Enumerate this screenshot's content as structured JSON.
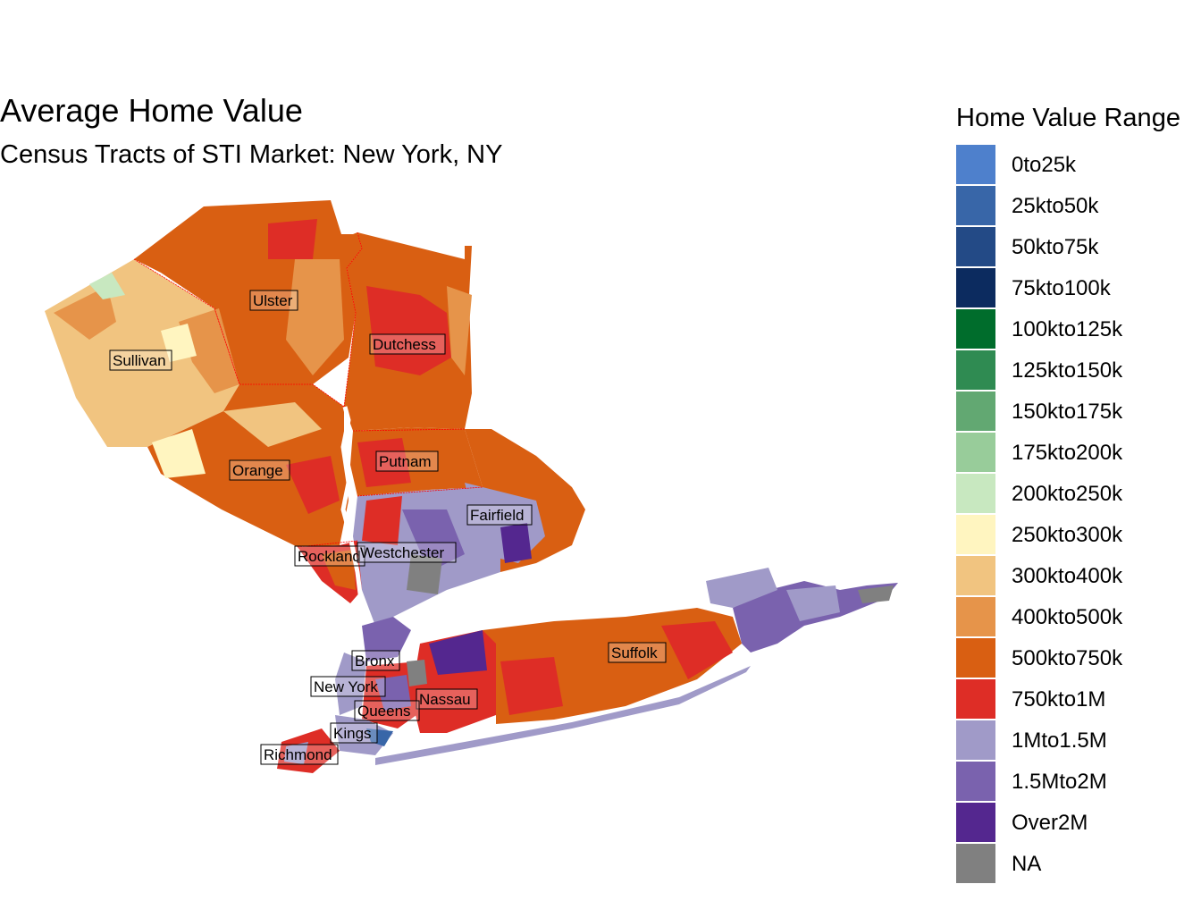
{
  "title": "Average Home Value",
  "subtitle": "Census Tracts of STI Market: New York, NY",
  "legend": {
    "title": "Home Value Range",
    "items": [
      {
        "label": "0to25k",
        "color": "#4e80cc"
      },
      {
        "label": "25kto50k",
        "color": "#3866a8"
      },
      {
        "label": "50kto75k",
        "color": "#234a86"
      },
      {
        "label": "75kto100k",
        "color": "#0c2b5f"
      },
      {
        "label": "100kto125k",
        "color": "#006d2c"
      },
      {
        "label": "125kto150k",
        "color": "#2f8b52"
      },
      {
        "label": "150kto175k",
        "color": "#62a872"
      },
      {
        "label": "175kto200k",
        "color": "#98cc9a"
      },
      {
        "label": "200kto250k",
        "color": "#c8e8c0"
      },
      {
        "label": "250kto300k",
        "color": "#fff5c0"
      },
      {
        "label": "300kto400k",
        "color": "#f1c480"
      },
      {
        "label": "400kto500k",
        "color": "#e6944a"
      },
      {
        "label": "500kto750k",
        "color": "#d95f12"
      },
      {
        "label": "750kto1M",
        "color": "#de2d26"
      },
      {
        "label": "1Mto1.5M",
        "color": "#a09ac8"
      },
      {
        "label": "1.5Mto2M",
        "color": "#7a62ae"
      },
      {
        "label": "Over2M",
        "color": "#54278f"
      },
      {
        "label": "NA",
        "color": "#808080"
      }
    ]
  },
  "counties": [
    {
      "name": "Ulster"
    },
    {
      "name": "Dutchess"
    },
    {
      "name": "Sullivan"
    },
    {
      "name": "Orange"
    },
    {
      "name": "Putnam"
    },
    {
      "name": "Fairfield"
    },
    {
      "name": "Rockland"
    },
    {
      "name": "Westchester"
    },
    {
      "name": "Suffolk"
    },
    {
      "name": "Bronx"
    },
    {
      "name": "New York"
    },
    {
      "name": "Nassau"
    },
    {
      "name": "Queens"
    },
    {
      "name": "Kings"
    },
    {
      "name": "Richmond"
    }
  ]
}
